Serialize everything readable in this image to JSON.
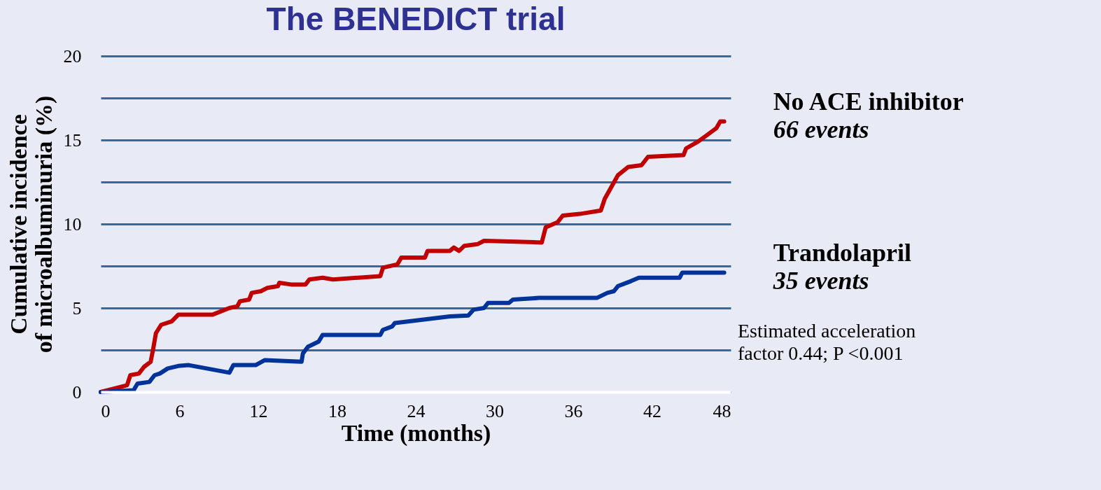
{
  "chart_data": {
    "type": "line",
    "title": "The BENEDICT trial",
    "xlabel": "Time (months)",
    "ylabel": "Cumulative incidence\nof microalbuminuria (%)",
    "xlim": [
      0,
      48
    ],
    "xticks": [
      0,
      6,
      12,
      18,
      24,
      30,
      36,
      42,
      48
    ],
    "ylim": [
      0,
      20
    ],
    "yticks": [
      0,
      {
        "value": 2.5,
        "label": null
      },
      5,
      {
        "value": 7.5,
        "label": null
      },
      10,
      {
        "value": 12.5,
        "label": null
      },
      15,
      {
        "value": 17.5,
        "label": null
      },
      20
    ],
    "grid": "y",
    "legend": false,
    "line_style": "solid",
    "marker": "none",
    "annotations": [
      "66 events",
      "35 events",
      "Estimated acceleration factor 0.44; P <0.001"
    ],
    "series": [
      {
        "name": "No ACE inhibitor",
        "color": "#c00000",
        "x": [
          0,
          2,
          2.25,
          2.9,
          3.3,
          3.8,
          4.0,
          4.2,
          4.6,
          5.4,
          5.9,
          7.2,
          8.5,
          9.8,
          10.4,
          10.6,
          11.3,
          11.5,
          12.2,
          12.7,
          13.5,
          13.6,
          14.5,
          15.6,
          15.9,
          16.9,
          17.7,
          21.3,
          21.5,
          22.6,
          22.9,
          24.7,
          24.9,
          26.6,
          26.9,
          27.3,
          27.7,
          28.7,
          29.2,
          33.6,
          33.9,
          34.8,
          35.2,
          36.5,
          38.1,
          38.4,
          38.9,
          39.4,
          40.2,
          41.2,
          41.7,
          44.4,
          44.6,
          45.5,
          46.2,
          46.9,
          47.2,
          47.5
        ],
        "values": [
          0,
          0.4,
          1.0,
          1.1,
          1.5,
          1.8,
          2.6,
          3.5,
          4.0,
          4.2,
          4.6,
          4.6,
          4.6,
          5.0,
          5.1,
          5.4,
          5.5,
          5.9,
          6.0,
          6.2,
          6.3,
          6.5,
          6.4,
          6.4,
          6.7,
          6.8,
          6.7,
          6.9,
          7.4,
          7.6,
          8.0,
          8.0,
          8.4,
          8.4,
          8.6,
          8.4,
          8.7,
          8.8,
          9.0,
          8.9,
          9.8,
          10.1,
          10.5,
          10.6,
          10.8,
          11.5,
          12.2,
          12.9,
          13.4,
          13.5,
          14.0,
          14.1,
          14.5,
          14.9,
          15.3,
          15.7,
          16.1,
          16.1
        ]
      },
      {
        "name": "Trandolapril",
        "color": "#003399",
        "x": [
          0,
          2.5,
          2.8,
          3.7,
          4.1,
          4.5,
          5.1,
          5.9,
          6.7,
          9.8,
          10.1,
          11.8,
          12.5,
          15.3,
          15.4,
          15.8,
          16.6,
          16.9,
          21.3,
          21.5,
          22.2,
          22.4,
          23.4,
          26.6,
          28,
          28.4,
          29.2,
          29.5,
          31.1,
          31.4,
          33.4,
          37.8,
          38.6,
          39.1,
          39.4,
          40.4,
          41,
          42.3,
          44.1,
          44.3,
          47.5
        ],
        "values": [
          0,
          0.1,
          0.5,
          0.6,
          1.0,
          1.1,
          1.4,
          1.55,
          1.6,
          1.15,
          1.6,
          1.6,
          1.9,
          1.8,
          2.3,
          2.7,
          3.0,
          3.4,
          3.4,
          3.7,
          3.9,
          4.1,
          4.2,
          4.5,
          4.55,
          4.9,
          5.0,
          5.3,
          5.3,
          5.5,
          5.6,
          5.6,
          5.9,
          6.0,
          6.3,
          6.6,
          6.8,
          6.8,
          6.8,
          7.1,
          7.1
        ]
      }
    ]
  }
}
